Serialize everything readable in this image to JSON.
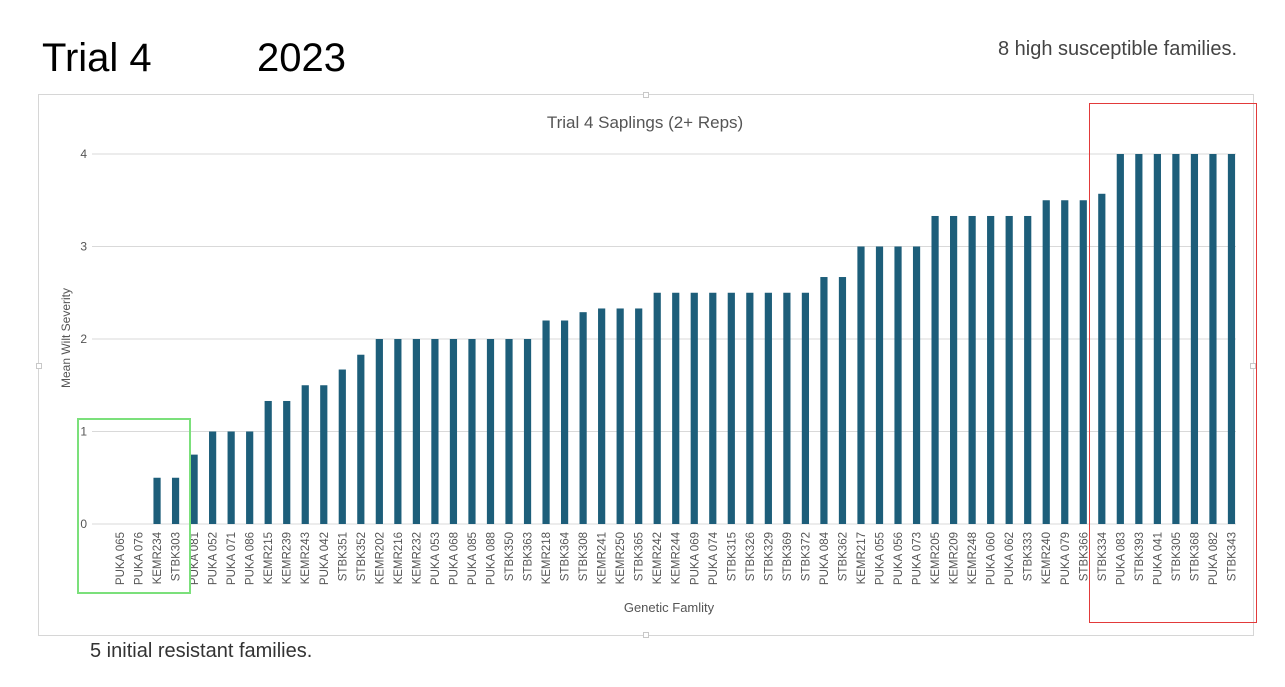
{
  "slide": {
    "title_left": "Trial 4",
    "title_right": "2023",
    "note_top": "8 high susceptible families.",
    "note_bottom": "5 initial resistant families."
  },
  "colors": {
    "bar": "#1d5e7a",
    "grid": "#d9d9d9",
    "resistant_box": "#7be07b",
    "susceptible_box": "#e23a3a"
  },
  "chart_data": {
    "type": "bar",
    "title": "Trial 4 Saplings (2+ Reps)",
    "xlabel": "Genetic Famlity",
    "ylabel": "Mean Wilt Severity",
    "ylim": [
      0,
      4
    ],
    "yticks": [
      0,
      1,
      2,
      3,
      4
    ],
    "grid": true,
    "legend": "none",
    "categories": [
      "PUKA 065",
      "PUKA 076",
      "KEMR234",
      "STBK303",
      "PUKA 081",
      "PUKA 052",
      "PUKA 071",
      "PUKA 086",
      "KEMR215",
      "KEMR239",
      "KEMR243",
      "PUKA 042",
      "STBK351",
      "STBK352",
      "KEMR202",
      "KEMR216",
      "KEMR232",
      "PUKA 053",
      "PUKA 068",
      "PUKA 085",
      "PUKA 088",
      "STBK350",
      "STBK363",
      "KEMR218",
      "STBK364",
      "STBK308",
      "KEMR241",
      "KEMR250",
      "STBK365",
      "KEMR242",
      "KEMR244",
      "PUKA 069",
      "PUKA 074",
      "STBK315",
      "STBK326",
      "STBK329",
      "STBK369",
      "STBK372",
      "PUKA 084",
      "STBK362",
      "KEMR217",
      "PUKA 055",
      "PUKA 056",
      "PUKA 073",
      "KEMR205",
      "KEMR209",
      "KEMR248",
      "PUKA 060",
      "PUKA 062",
      "STBK333",
      "KEMR240",
      "PUKA 079",
      "STBK366",
      "STBK334",
      "PUKA 083",
      "STBK393",
      "PUKA 041",
      "STBK305",
      "STBK368",
      "PUKA 082",
      "STBK343"
    ],
    "values": [
      0,
      0,
      0.5,
      0.5,
      0.75,
      1,
      1,
      1,
      1.33,
      1.33,
      1.5,
      1.5,
      1.67,
      1.83,
      2,
      2,
      2,
      2,
      2,
      2,
      2,
      2,
      2,
      2.2,
      2.2,
      2.29,
      2.33,
      2.33,
      2.33,
      2.5,
      2.5,
      2.5,
      2.5,
      2.5,
      2.5,
      2.5,
      2.5,
      2.5,
      2.67,
      2.67,
      3,
      3,
      3,
      3,
      3.33,
      3.33,
      3.33,
      3.33,
      3.33,
      3.33,
      3.5,
      3.5,
      3.5,
      3.57,
      4,
      4,
      4,
      4,
      4,
      4,
      4
    ]
  }
}
